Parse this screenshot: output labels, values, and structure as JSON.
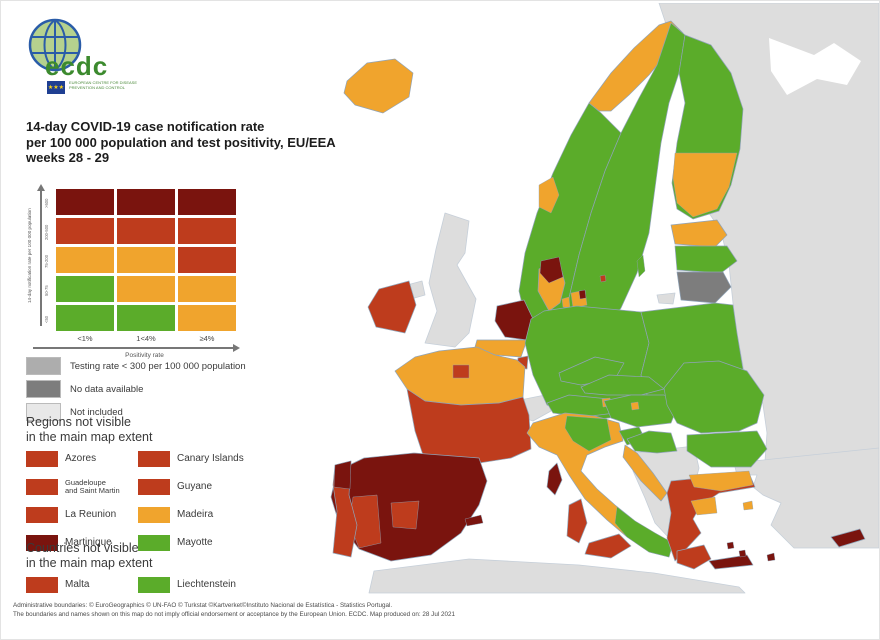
{
  "logo": {
    "org_acronym": "ecdc",
    "org_name_lines": "EUROPEAN CENTRE FOR DISEASE PREVENTION AND CONTROL"
  },
  "title": {
    "line1": "14-day COVID-19 case notification rate",
    "line2": "per 100 000 population and test positivity, EU/EEA",
    "line3": "weeks 28 - 29"
  },
  "matrix": {
    "y_axis_label": "14-day notification rate per 100 000 population",
    "x_axis_label": "Positivity rate",
    "row_labels": [
      ">500",
      "200-500",
      "75-200",
      "50-75",
      "<50"
    ],
    "col_labels": [
      "<1%",
      "1<4%",
      "≥4%"
    ],
    "cells": [
      [
        "darkred",
        "darkred",
        "darkred"
      ],
      [
        "red",
        "red",
        "red"
      ],
      [
        "orange",
        "orange",
        "red"
      ],
      [
        "green",
        "orange",
        "orange"
      ],
      [
        "green",
        "green",
        "orange"
      ]
    ]
  },
  "legend": {
    "items": [
      {
        "label": "Testing rate < 300 per 100 000 population",
        "color": "testing"
      },
      {
        "label": "No data available",
        "color": "nodata"
      },
      {
        "label": "Not included",
        "color": "notincluded"
      }
    ]
  },
  "regions_section": {
    "heading_line1": "Regions not visible",
    "heading_line2": "in the main map extent",
    "items": [
      {
        "label": "Azores",
        "color": "red",
        "small": false
      },
      {
        "label": "Canary Islands",
        "color": "red",
        "small": false
      },
      {
        "label": "Guadeloupe\nand Saint Martin",
        "color": "red",
        "small": true
      },
      {
        "label": "Guyane",
        "color": "red",
        "small": false
      },
      {
        "label": "La Reunion",
        "color": "red",
        "small": false
      },
      {
        "label": "Madeira",
        "color": "orange",
        "small": false
      },
      {
        "label": "Martinique",
        "color": "darkred",
        "small": false
      },
      {
        "label": "Mayotte",
        "color": "green",
        "small": false
      }
    ]
  },
  "countries_section": {
    "heading_line1": "Countries not visible",
    "heading_line2": "in the main map extent",
    "items": [
      {
        "label": "Malta",
        "color": "red",
        "small": false
      },
      {
        "label": "Liechtenstein",
        "color": "green",
        "small": false
      }
    ]
  },
  "footer": {
    "line1": "Administrative boundaries: © EuroGeographics © UN-FAO © Turkstat ©Kartverket©Instituto Nacional de Estatística - Statistics Portugal.",
    "line2": "The boundaries and names shown on this map do not imply official endorsement or acceptance by the European Union. ECDC. Map produced on: 28 Jul 2021"
  },
  "colors": {
    "green": "#5BAC2A",
    "orange": "#F0A42D",
    "red": "#BE3C1D",
    "darkred": "#7A140E",
    "testing": "#ADADAD",
    "nodata": "#7D7D7D",
    "notincluded": "#E8E8E8",
    "outside": "#DDDDDD",
    "sea": "#FFFFFF"
  },
  "map": {
    "region_status": {
      "east_landmass": "outside",
      "white_sea": "sea",
      "africa": "outside",
      "turkey": "outside",
      "west_balkans": "outside",
      "uk": "outside",
      "northern_ireland": "outside",
      "switzerland": "outside",
      "kaliningrad": "outside",
      "iceland": "orange",
      "norway_main": "green",
      "norway_cap": "orange",
      "norway_west": "orange",
      "sweden": "green",
      "gotland": "green",
      "finland": "green",
      "finland_central": "orange",
      "estonia": "orange",
      "latvia": "green",
      "lithuania": "nodata",
      "denmark_jutland": "orange",
      "denmark_jutland_north": "darkred",
      "denmark_funen": "orange",
      "denmark_zealand": "orange",
      "denmark_copenhagen": "darkred",
      "bornholm": "red",
      "ireland": "red",
      "netherlands": "darkred",
      "belgium": "orange",
      "luxembourg": "red",
      "germany": "green",
      "poland": "green",
      "czechia": "green",
      "slovakia": "green",
      "austria": "green",
      "vienna": "orange",
      "france_north": "orange",
      "paris": "red",
      "france_south": "red",
      "corsica": "darkred",
      "spain": "darkred",
      "spain_west": "red",
      "spain_central": "red",
      "portugal": "red",
      "portugal_north": "darkred",
      "balearics": "darkred",
      "italy": "orange",
      "italy_north": "green",
      "italy_south": "green",
      "sardinia": "red",
      "sicily": "red",
      "slovenia": "green",
      "croatia_inland": "green",
      "croatia_coast": "orange",
      "hungary": "green",
      "budapest": "orange",
      "romania": "green",
      "bulgaria": "green",
      "greece": "red",
      "greece_north": "orange",
      "greece_central": "orange",
      "peloponnese": "red",
      "crete": "darkred",
      "aegean_1": "darkred",
      "aegean_2": "darkred",
      "lesbos": "orange",
      "rhodes": "darkred",
      "cyprus": "darkred"
    }
  }
}
